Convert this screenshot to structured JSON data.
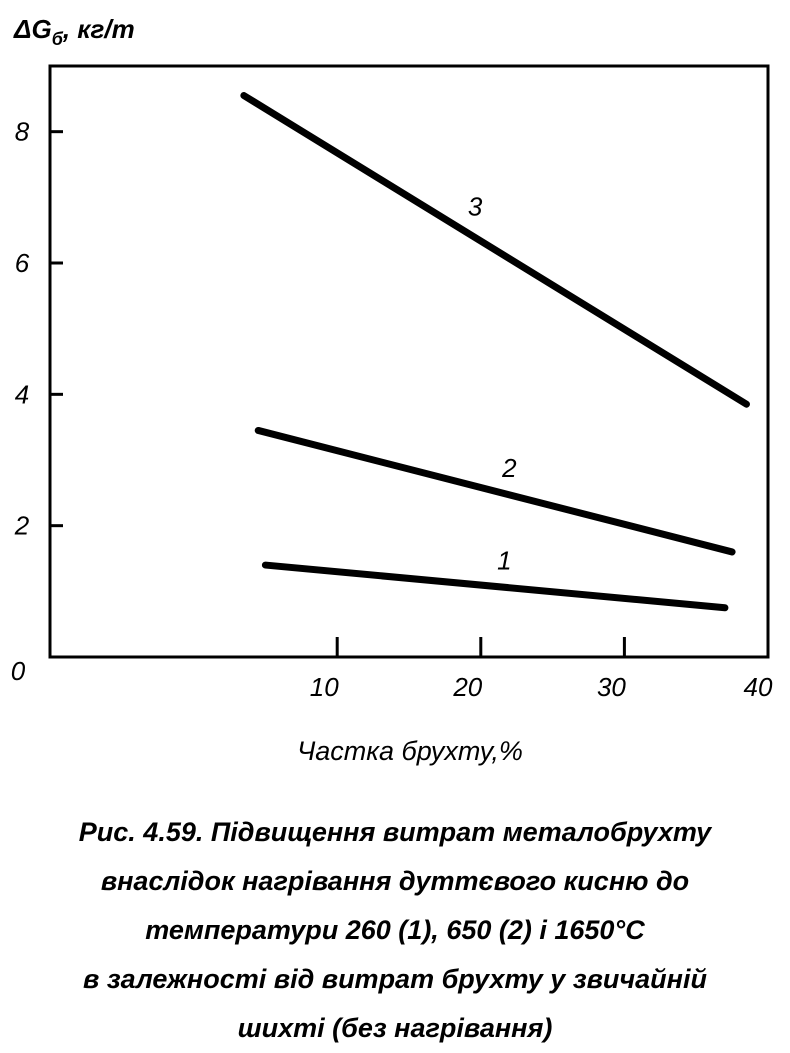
{
  "chart_data": {
    "type": "line",
    "ylabel": "ΔGб, кг/т",
    "xlabel": "Частка брухту,%",
    "xlim": [
      -10,
      40
    ],
    "ylim": [
      0,
      9
    ],
    "x_ticks": [
      "10",
      "20",
      "30",
      "40"
    ],
    "y_ticks": [
      "2",
      "4",
      "6",
      "8"
    ],
    "origin_label": "0",
    "series": [
      {
        "name": "1",
        "x": [
          5,
          37
        ],
        "y": [
          1.4,
          0.75
        ]
      },
      {
        "name": "2",
        "x": [
          4.5,
          37.5
        ],
        "y": [
          3.45,
          1.6
        ]
      },
      {
        "name": "3",
        "x": [
          3.5,
          38.5
        ],
        "y": [
          8.55,
          3.85
        ]
      }
    ]
  },
  "caption": {
    "lines": [
      "Рис. 4.59. Підвищення витрат металобрухту",
      "внаслідок нагрівання дуттєвого кисню до",
      "температури 260 (1), 650 (2) і 1650°С",
      "в залежності від витрат брухту у звичайній",
      "шихті (без нагрівання)"
    ]
  },
  "colors": {
    "ink": "#000000",
    "background": "#ffffff"
  }
}
